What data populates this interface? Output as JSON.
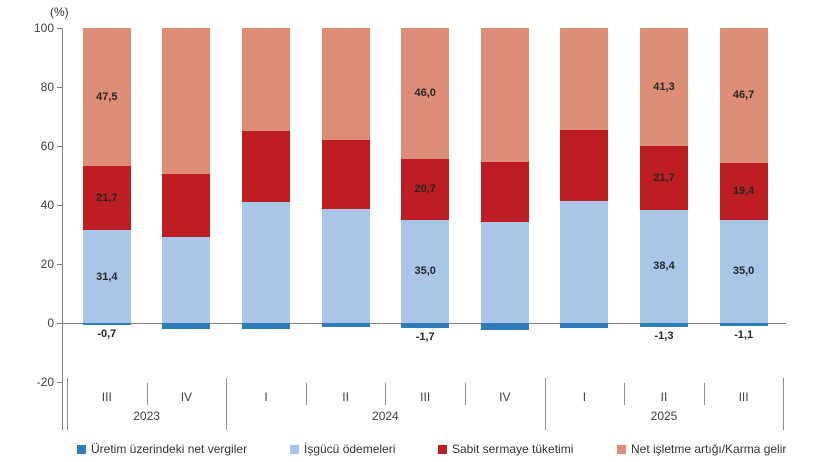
{
  "chart_data": {
    "type": "bar",
    "stacked": true,
    "unit_label": "(%)",
    "categories": [
      "III",
      "IV",
      "I",
      "II",
      "III",
      "IV",
      "I",
      "II",
      "III"
    ],
    "year_groups": [
      {
        "label": "2023",
        "from": 0,
        "to": 1
      },
      {
        "label": "2024",
        "from": 2,
        "to": 5
      },
      {
        "label": "2025",
        "from": 6,
        "to": 8
      }
    ],
    "series": [
      {
        "name": "Üretim üzerindeki net vergiler",
        "color": "#2E7CBA",
        "values": [
          -0.7,
          -2.1,
          -1.9,
          -1.5,
          -1.7,
          -2.3,
          -1.7,
          -1.3,
          -1.1
        ]
      },
      {
        "name": "İşgücü ödemeleri",
        "color": "#A9C6E8",
        "values": [
          31.4,
          29.3,
          41.0,
          38.6,
          35.0,
          34.4,
          41.4,
          38.4,
          35.0
        ]
      },
      {
        "name": "Sabit sermaye tüketimi",
        "color": "#BE1E23",
        "values": [
          21.7,
          21.1,
          24.2,
          23.4,
          20.7,
          20.3,
          24.0,
          21.7,
          19.4
        ]
      },
      {
        "name": "Net işletme artığı/Karma gelir",
        "color": "#DD8C75",
        "values": [
          47.5,
          49.6,
          34.8,
          38.0,
          46.0,
          45.3,
          34.6,
          41.3,
          46.7
        ]
      }
    ],
    "shown_labels": [
      [
        "-0,7",
        "31,4",
        "21,7",
        "47,5"
      ],
      null,
      null,
      null,
      [
        "-1,7",
        "35,0",
        "20,7",
        "46,0"
      ],
      null,
      null,
      [
        "-1,3",
        "38,4",
        "21,7",
        "41,3"
      ],
      [
        "-1,1",
        "35,0",
        "19,4",
        "46,7"
      ]
    ],
    "y_ticks": [
      100,
      80,
      60,
      40,
      20,
      0,
      -20
    ],
    "ylim": [
      -20,
      100
    ],
    "grid": false,
    "legend_position": "bottom"
  },
  "legend": {
    "items": [
      {
        "label": "Üretim üzerindeki net vergiler",
        "color": "#2E7CBA"
      },
      {
        "label": "İşgücü ödemeleri",
        "color": "#A9C6E8"
      },
      {
        "label": "Sabit sermaye tüketimi",
        "color": "#BE1E23"
      },
      {
        "label": "Net işletme artığı/Karma gelir",
        "color": "#DD8C75"
      }
    ]
  }
}
